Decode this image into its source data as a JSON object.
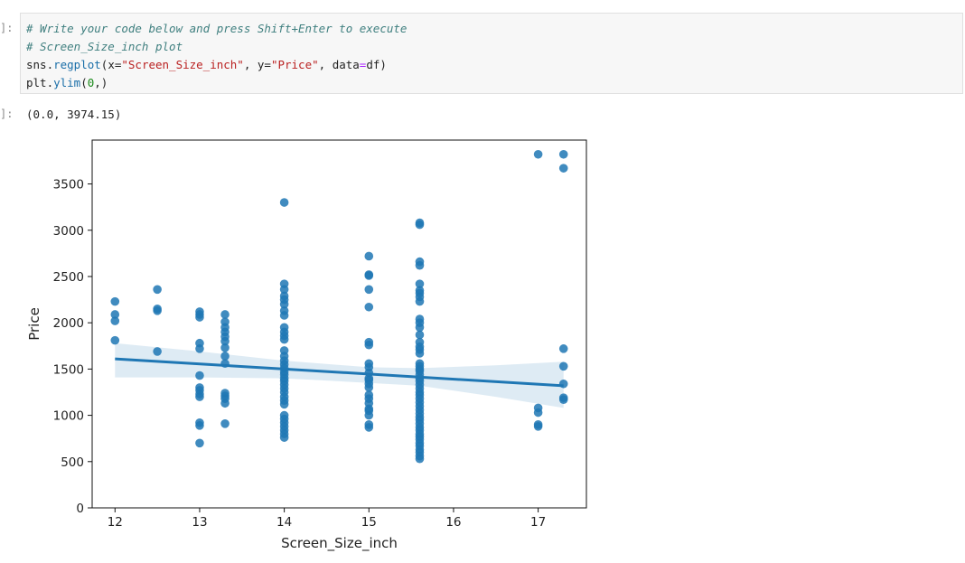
{
  "cell": {
    "input_prompt": "]:",
    "output_prompt": "]:",
    "code": {
      "line1_comment": "# Write your code below and press Shift+Enter to execute",
      "line2_comment": "# Screen_Size_inch plot",
      "line3": {
        "obj": "sns",
        "dot": ".",
        "func": "regplot",
        "open": "(x=",
        "xstr": "\"Screen_Size_inch\"",
        "mid1": ", y=",
        "ystr": "\"Price\"",
        "mid2": ", data",
        "eq": "=",
        "end": "df)"
      },
      "line4": {
        "obj": "plt",
        "dot": ".",
        "func": "ylim",
        "open": "(",
        "num": "0",
        "end": ",)"
      }
    },
    "output_text": "(0.0, 3974.15)"
  },
  "colors": {
    "point": "#1f77b4",
    "line": "#1f77b4",
    "band": "#1f77b4"
  },
  "chart_data": {
    "type": "scatter",
    "title": "",
    "xlabel": "Screen_Size_inch",
    "ylabel": "Price",
    "xlim": [
      11.73,
      17.57
    ],
    "ylim": [
      0,
      3974.15
    ],
    "xticks": [
      12,
      13,
      14,
      15,
      16,
      17
    ],
    "yticks": [
      0,
      500,
      1000,
      1500,
      2000,
      2500,
      3000,
      3500
    ],
    "grid": false,
    "legend": "none",
    "points": [
      [
        12.0,
        2230
      ],
      [
        12.0,
        2090
      ],
      [
        12.0,
        2020
      ],
      [
        12.0,
        1810
      ],
      [
        12.5,
        2360
      ],
      [
        12.5,
        2150
      ],
      [
        12.5,
        2130
      ],
      [
        12.5,
        1690
      ],
      [
        13.0,
        2120
      ],
      [
        13.0,
        2090
      ],
      [
        13.0,
        2060
      ],
      [
        13.0,
        1780
      ],
      [
        13.0,
        1720
      ],
      [
        13.0,
        1430
      ],
      [
        13.0,
        1300
      ],
      [
        13.0,
        1270
      ],
      [
        13.0,
        1230
      ],
      [
        13.0,
        1200
      ],
      [
        13.0,
        920
      ],
      [
        13.0,
        890
      ],
      [
        13.0,
        700
      ],
      [
        13.3,
        2090
      ],
      [
        13.3,
        2010
      ],
      [
        13.3,
        1950
      ],
      [
        13.3,
        1900
      ],
      [
        13.3,
        1850
      ],
      [
        13.3,
        1800
      ],
      [
        13.3,
        1730
      ],
      [
        13.3,
        1640
      ],
      [
        13.3,
        1560
      ],
      [
        13.3,
        1240
      ],
      [
        13.3,
        1210
      ],
      [
        13.3,
        1180
      ],
      [
        13.3,
        1130
      ],
      [
        13.3,
        910
      ],
      [
        14.0,
        3300
      ],
      [
        14.0,
        2420
      ],
      [
        14.0,
        2360
      ],
      [
        14.0,
        2290
      ],
      [
        14.0,
        2250
      ],
      [
        14.0,
        2200
      ],
      [
        14.0,
        2130
      ],
      [
        14.0,
        2080
      ],
      [
        14.0,
        1950
      ],
      [
        14.0,
        1900
      ],
      [
        14.0,
        1860
      ],
      [
        14.0,
        1820
      ],
      [
        14.0,
        1700
      ],
      [
        14.0,
        1640
      ],
      [
        14.0,
        1590
      ],
      [
        14.0,
        1550
      ],
      [
        14.0,
        1510
      ],
      [
        14.0,
        1470
      ],
      [
        14.0,
        1440
      ],
      [
        14.0,
        1400
      ],
      [
        14.0,
        1370
      ],
      [
        14.0,
        1330
      ],
      [
        14.0,
        1290
      ],
      [
        14.0,
        1250
      ],
      [
        14.0,
        1200
      ],
      [
        14.0,
        1160
      ],
      [
        14.0,
        1120
      ],
      [
        14.0,
        1000
      ],
      [
        14.0,
        960
      ],
      [
        14.0,
        920
      ],
      [
        14.0,
        880
      ],
      [
        14.0,
        840
      ],
      [
        14.0,
        800
      ],
      [
        14.0,
        760
      ],
      [
        15.0,
        2720
      ],
      [
        15.0,
        2520
      ],
      [
        15.0,
        2510
      ],
      [
        15.0,
        2360
      ],
      [
        15.0,
        2170
      ],
      [
        15.0,
        1790
      ],
      [
        15.0,
        1760
      ],
      [
        15.0,
        1560
      ],
      [
        15.0,
        1520
      ],
      [
        15.0,
        1460
      ],
      [
        15.0,
        1400
      ],
      [
        15.0,
        1380
      ],
      [
        15.0,
        1340
      ],
      [
        15.0,
        1300
      ],
      [
        15.0,
        1220
      ],
      [
        15.0,
        1180
      ],
      [
        15.0,
        1130
      ],
      [
        15.0,
        1070
      ],
      [
        15.0,
        1050
      ],
      [
        15.0,
        1000
      ],
      [
        15.0,
        900
      ],
      [
        15.0,
        870
      ],
      [
        15.6,
        3080
      ],
      [
        15.6,
        3060
      ],
      [
        15.6,
        2660
      ],
      [
        15.6,
        2620
      ],
      [
        15.6,
        2420
      ],
      [
        15.6,
        2350
      ],
      [
        15.6,
        2320
      ],
      [
        15.6,
        2280
      ],
      [
        15.6,
        2230
      ],
      [
        15.6,
        2040
      ],
      [
        15.6,
        2000
      ],
      [
        15.6,
        1950
      ],
      [
        15.6,
        1870
      ],
      [
        15.6,
        1790
      ],
      [
        15.6,
        1740
      ],
      [
        15.6,
        1710
      ],
      [
        15.6,
        1670
      ],
      [
        15.6,
        1560
      ],
      [
        15.6,
        1530
      ],
      [
        15.6,
        1500
      ],
      [
        15.6,
        1480
      ],
      [
        15.6,
        1440
      ],
      [
        15.6,
        1400
      ],
      [
        15.6,
        1370
      ],
      [
        15.6,
        1330
      ],
      [
        15.6,
        1290
      ],
      [
        15.6,
        1250
      ],
      [
        15.6,
        1220
      ],
      [
        15.6,
        1180
      ],
      [
        15.6,
        1140
      ],
      [
        15.6,
        1100
      ],
      [
        15.6,
        1060
      ],
      [
        15.6,
        1020
      ],
      [
        15.6,
        980
      ],
      [
        15.6,
        950
      ],
      [
        15.6,
        910
      ],
      [
        15.6,
        870
      ],
      [
        15.6,
        840
      ],
      [
        15.6,
        800
      ],
      [
        15.6,
        770
      ],
      [
        15.6,
        740
      ],
      [
        15.6,
        700
      ],
      [
        15.6,
        670
      ],
      [
        15.6,
        630
      ],
      [
        15.6,
        600
      ],
      [
        15.6,
        560
      ],
      [
        15.6,
        530
      ],
      [
        17.0,
        3820
      ],
      [
        17.0,
        1080
      ],
      [
        17.0,
        1030
      ],
      [
        17.0,
        900
      ],
      [
        17.0,
        880
      ],
      [
        17.3,
        3820
      ],
      [
        17.3,
        3670
      ],
      [
        17.3,
        1720
      ],
      [
        17.3,
        1530
      ],
      [
        17.3,
        1340
      ],
      [
        17.3,
        1190
      ],
      [
        17.3,
        1170
      ]
    ],
    "regression": {
      "x": [
        12.0,
        17.3
      ],
      "y": [
        1610,
        1320
      ]
    },
    "ci_band": {
      "x": [
        12.0,
        13.0,
        14.0,
        15.0,
        15.6,
        16.5,
        17.3
      ],
      "upper": [
        1780,
        1690,
        1590,
        1520,
        1510,
        1540,
        1580
      ],
      "lower": [
        1410,
        1410,
        1400,
        1350,
        1320,
        1200,
        1080
      ]
    }
  }
}
